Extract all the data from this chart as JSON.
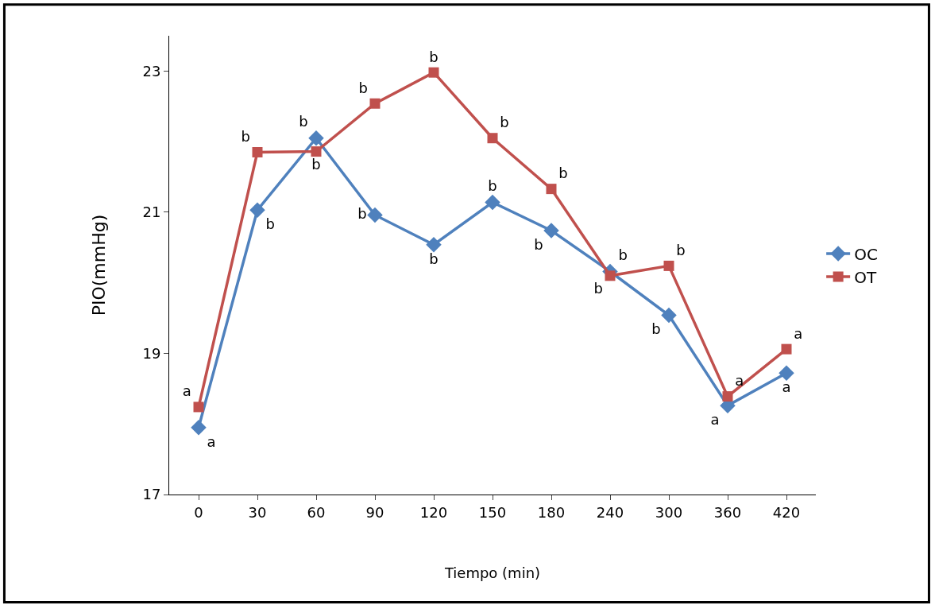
{
  "chart_data": {
    "type": "line",
    "xlabel": "Tiempo (min)",
    "ylabel": "PIO(mmHg)",
    "categories": [
      "0",
      "30",
      "60",
      "90",
      "120",
      "150",
      "180",
      "240",
      "300",
      "360",
      "420"
    ],
    "series": [
      {
        "name": "OC",
        "color": "#4f81bd",
        "marker": "diamond",
        "values": [
          17.95,
          21.03,
          22.05,
          20.96,
          20.54,
          21.14,
          20.74,
          20.16,
          19.54,
          18.26,
          18.72
        ],
        "value_labels": [
          "a",
          "b",
          "b",
          "b",
          "b",
          "b",
          "b",
          "b",
          "b",
          "a",
          "a"
        ]
      },
      {
        "name": "OT",
        "color": "#c0504d",
        "marker": "square",
        "values": [
          18.24,
          21.85,
          21.86,
          22.54,
          22.98,
          22.05,
          21.33,
          20.1,
          20.24,
          18.39,
          19.06
        ],
        "value_labels": [
          "a",
          "b",
          "b",
          "b",
          "b",
          "b",
          "b",
          "b",
          "b",
          "a",
          "a"
        ]
      }
    ],
    "ylim": [
      17,
      23.5
    ],
    "yticks": [
      17,
      19,
      21,
      23
    ],
    "legend": "right"
  }
}
